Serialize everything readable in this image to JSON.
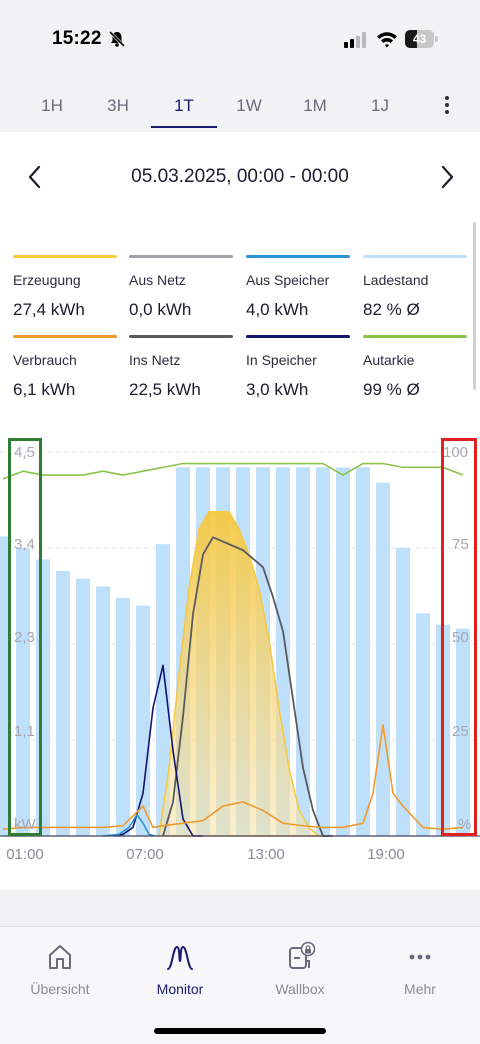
{
  "status_bar": {
    "time": "15:22",
    "battery": "43",
    "battery_level": 0.43
  },
  "tabs": [
    {
      "label": "1H"
    },
    {
      "label": "3H"
    },
    {
      "label": "1T",
      "active": true
    },
    {
      "label": "1W"
    },
    {
      "label": "1M"
    },
    {
      "label": "1J"
    }
  ],
  "date_range": "05.03.2025, 00:00 - 00:00",
  "legend": [
    {
      "label": "Erzeugung",
      "value": "27,4 kWh",
      "color": "#f5c842"
    },
    {
      "label": "Aus Netz",
      "value": "0,0 kWh",
      "color": "#a0a0a6"
    },
    {
      "label": "Aus Speicher",
      "value": "4,0 kWh",
      "color": "#2b93d6"
    },
    {
      "label": "Ladestand",
      "value": "82 % Ø",
      "color": "#bfe0fb"
    },
    {
      "label": "Verbrauch",
      "value": "6,1 kWh",
      "color": "#f09a2c"
    },
    {
      "label": "Ins Netz",
      "value": "22,5 kWh",
      "color": "#5a5a5e"
    },
    {
      "label": "In Speicher",
      "value": "3,0 kWh",
      "color": "#14146e"
    },
    {
      "label": "Autarkie",
      "value": "99 % Ø",
      "color": "#8bc34a"
    }
  ],
  "chart": {
    "y_left_ticks": [
      "4,5",
      "3,4",
      "2,3",
      "1,1",
      "kW"
    ],
    "y_right_ticks": [
      "100",
      "75",
      "50",
      "25",
      "%"
    ],
    "x_ticks": [
      "01:00",
      "07:00",
      "13:00",
      "19:00"
    ]
  },
  "chart_data": {
    "type": "area",
    "x_unit": "hour",
    "y_left_unit": "kW",
    "y_right_unit": "%",
    "y_left_range": [
      0,
      4.5
    ],
    "y_right_range": [
      0,
      100
    ],
    "series": [
      {
        "name": "Ladestand",
        "axis": "right",
        "kind": "bar",
        "x": [
          0,
          1,
          2,
          3,
          4,
          5,
          6,
          7,
          8,
          9,
          10,
          11,
          12,
          13,
          14,
          15,
          16,
          17,
          18,
          19,
          20,
          21,
          22,
          23
        ],
        "values": [
          78,
          75,
          72,
          69,
          67,
          65,
          62,
          60,
          76,
          96,
          96,
          96,
          96,
          96,
          96,
          96,
          96,
          96,
          96,
          92,
          75,
          58,
          55,
          54
        ]
      },
      {
        "name": "Autarkie",
        "axis": "right",
        "kind": "line",
        "x": [
          0,
          1,
          2,
          3,
          4,
          5,
          6,
          7,
          8,
          9,
          10,
          11,
          12,
          13,
          14,
          15,
          16,
          17,
          18,
          19,
          20,
          21,
          22,
          23
        ],
        "values": [
          93,
          95,
          94,
          94,
          94,
          95,
          94,
          95,
          96,
          97,
          97,
          97,
          97,
          97,
          97,
          97,
          97,
          94,
          97,
          97,
          96,
          96,
          96,
          94
        ]
      },
      {
        "name": "Erzeugung",
        "axis": "left",
        "kind": "area",
        "x": [
          7.8,
          8.3,
          8.8,
          9.3,
          9.8,
          10.3,
          10.8,
          11.3,
          11.8,
          12.3,
          12.8,
          13.3,
          13.8,
          14.3,
          14.8,
          15.3,
          15.8,
          16.3
        ],
        "values": [
          0,
          0.8,
          1.9,
          2.9,
          3.6,
          3.8,
          3.8,
          3.8,
          3.6,
          3.3,
          2.9,
          2.3,
          1.5,
          0.8,
          0.3,
          0.1,
          0,
          0
        ]
      },
      {
        "name": "Ins Netz",
        "axis": "left",
        "kind": "line",
        "x": [
          8.0,
          8.5,
          9.0,
          9.5,
          10.0,
          10.5,
          11.0,
          11.5,
          12.0,
          12.5,
          13.0,
          13.5,
          14.0,
          14.5,
          15.0,
          15.5,
          16.0,
          16.5
        ],
        "values": [
          0,
          0.4,
          1.4,
          2.6,
          3.3,
          3.5,
          3.45,
          3.4,
          3.35,
          3.25,
          3.15,
          2.8,
          2.4,
          1.6,
          0.8,
          0.3,
          0,
          0
        ]
      },
      {
        "name": "In Speicher",
        "axis": "left",
        "kind": "line",
        "x": [
          5.6,
          6.0,
          6.5,
          7.0,
          7.5,
          8.0,
          8.5,
          9.0,
          9.5,
          10.0
        ],
        "values": [
          0,
          0.02,
          0.1,
          0.5,
          1.5,
          2.0,
          1.0,
          0.2,
          0,
          0
        ]
      },
      {
        "name": "Aus Speicher",
        "axis": "left",
        "kind": "line",
        "x": [
          5.0,
          5.8,
          6.3,
          6.7,
          7.0,
          7.3,
          7.6
        ],
        "values": [
          0,
          0.02,
          0.1,
          0.25,
          0.15,
          0.02,
          0
        ]
      },
      {
        "name": "Verbrauch",
        "axis": "left",
        "kind": "line",
        "x": [
          0,
          1,
          2,
          3,
          4,
          5,
          6,
          7,
          7.5,
          8,
          9,
          10,
          11,
          12,
          13,
          14,
          15,
          16,
          17,
          18,
          18.5,
          19,
          19.5,
          20,
          21,
          22,
          23
        ],
        "values": [
          0.08,
          0.1,
          0.1,
          0.1,
          0.1,
          0.1,
          0.12,
          0.35,
          0.1,
          0.12,
          0.15,
          0.18,
          0.35,
          0.4,
          0.3,
          0.15,
          0.12,
          0.1,
          0.1,
          0.15,
          0.5,
          1.3,
          0.5,
          0.35,
          0.1,
          0.08,
          0.1
        ]
      },
      {
        "name": "Aus Netz",
        "axis": "left",
        "kind": "line",
        "x": [
          0,
          23
        ],
        "values": [
          0,
          0
        ]
      }
    ]
  }
}
